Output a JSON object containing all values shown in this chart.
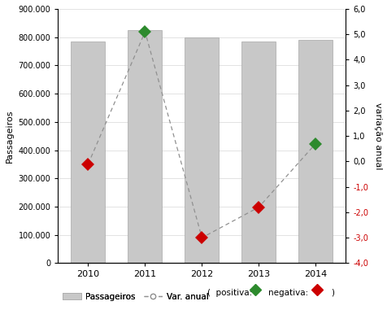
{
  "years": [
    2010,
    2011,
    2012,
    2013,
    2014
  ],
  "passengers": [
    785000,
    825000,
    800000,
    785000,
    790000
  ],
  "var_anual": [
    -0.1,
    5.1,
    -3.0,
    -1.8,
    0.7
  ],
  "bar_color": "#c8c8c8",
  "bar_edgecolor": "#a8a8a8",
  "line_color": "#909090",
  "positive_color": "#2d8a2d",
  "negative_color": "#cc0000",
  "ylabel_left": "Passageiros",
  "ylabel_right": "variação anual",
  "ylim_left": [
    0,
    900000
  ],
  "ylim_right": [
    -4.0,
    6.0
  ],
  "yticks_left": [
    0,
    100000,
    200000,
    300000,
    400000,
    500000,
    600000,
    700000,
    800000,
    900000
  ],
  "yticks_right": [
    -4.0,
    -3.0,
    -2.0,
    -1.0,
    0.0,
    1.0,
    2.0,
    3.0,
    4.0,
    5.0,
    6.0
  ],
  "background_color": "#ffffff",
  "legend_bar_label": "Passageiros",
  "legend_line_label": "Var. anual",
  "legend_pos_label": "positiva:",
  "legend_neg_label": "negativa:"
}
